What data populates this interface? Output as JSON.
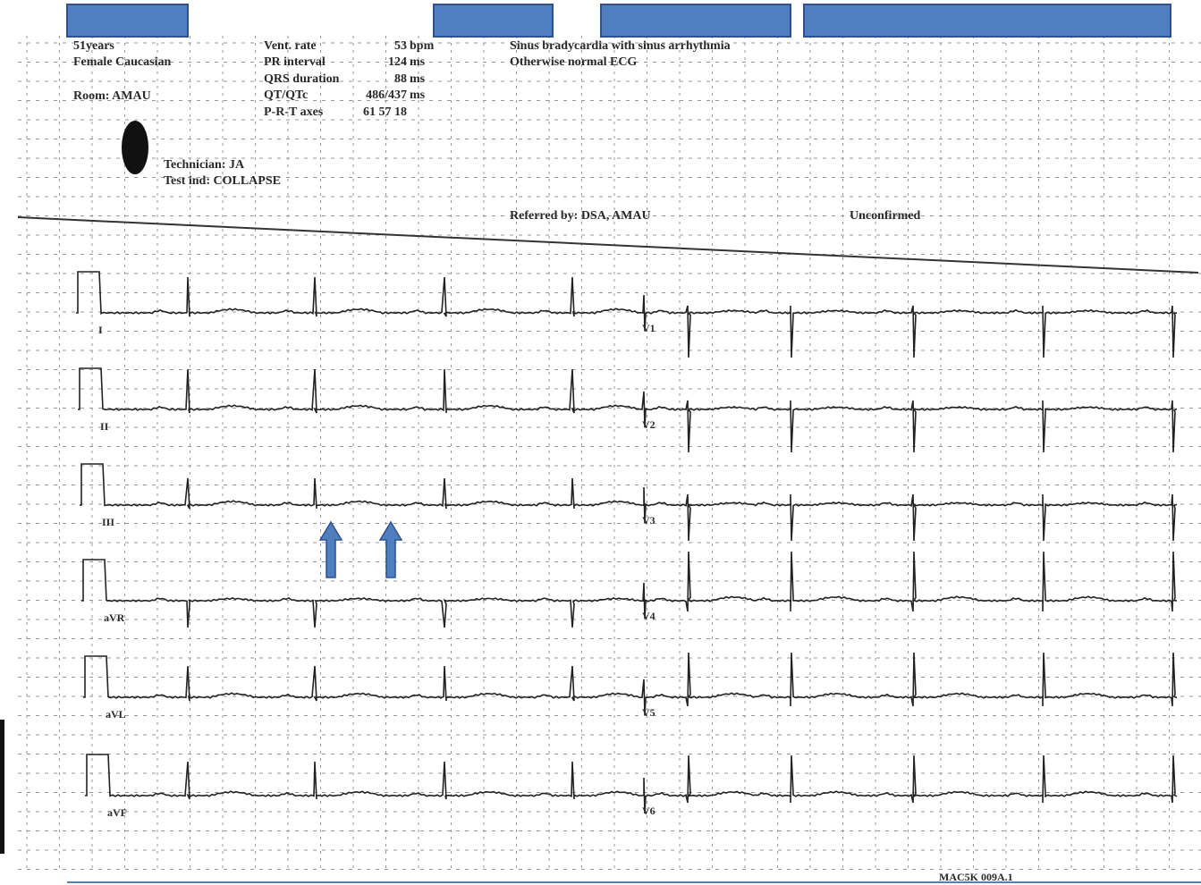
{
  "header": {
    "patient": [
      "51years",
      "Female   Caucasian",
      "Room: AMAU"
    ],
    "measurements": [
      {
        "label": "Vent. rate",
        "value": "53",
        "unit": "bpm"
      },
      {
        "label": "PR interval",
        "value": "124",
        "unit": "ms"
      },
      {
        "label": "QRS duration",
        "value": "88",
        "unit": "ms"
      },
      {
        "label": "QT/QTc",
        "value": "486/437",
        "unit": "ms"
      },
      {
        "label": "P-R-T axes",
        "value": "61  57  18",
        "unit": ""
      }
    ],
    "interpretation": [
      "Sinus bradycardia with sinus arrhythmia",
      "Otherwise normal ECG"
    ],
    "technician": "Technician: JA",
    "test_indication": "Test ind: COLLAPSE",
    "referred_by": "Referred by: DSA, AMAU",
    "status": "Unconfirmed"
  },
  "leads": {
    "limb": [
      "I",
      "II",
      "III",
      "aVR",
      "aVL",
      "aVF"
    ],
    "chest": [
      "V1",
      "V2",
      "V3",
      "V4",
      "V5",
      "V6"
    ]
  },
  "footer": "MAC5K 009A.1"
}
